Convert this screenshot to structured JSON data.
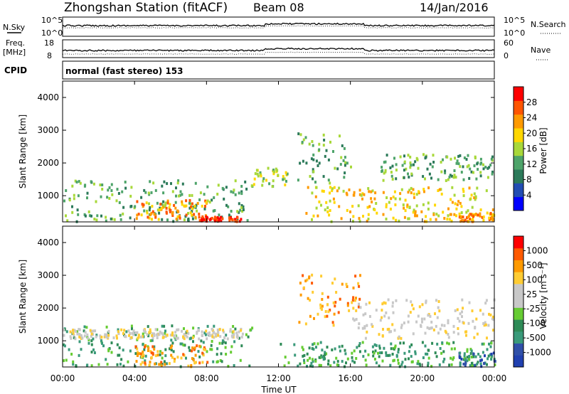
{
  "header": {
    "station": "Zhongshan Station (fitACF)",
    "beam": "Beam 08",
    "date": "14/Jan/2016"
  },
  "side_labels": {
    "nsky": "N.Sky",
    "nsearch": "N.Search",
    "freq": "Freq.",
    "freq_unit": "[MHz]",
    "nave": "Nave",
    "cpid": "CPID",
    "cpid_value": "normal (fast stereo) 153",
    "tick_1e5": "10^5",
    "tick_1e0": "10^0",
    "tick_18": "18",
    "tick_8": "8",
    "tick_60": "60",
    "tick_0": "0"
  },
  "colors": {
    "power_scale": [
      "#0000ff",
      "#224db3",
      "#2c7a5a",
      "#4ea46a",
      "#a8d83a",
      "#ffd700",
      "#ff9a00",
      "#ff5500",
      "#ff0000"
    ],
    "velocity_scale": [
      "#ff0000",
      "#ff5a00",
      "#ff9a00",
      "#ffcc33",
      "#c8c8c8",
      "#c8c8c8",
      "#66cc33",
      "#2e8b57",
      "#3a9a7a",
      "#3050a8",
      "#2040b0"
    ]
  },
  "chart_data": [
    {
      "type": "heatmap",
      "name": "power",
      "ylabel": "Slant Range [km]",
      "yticks": [
        "1000",
        "2000",
        "3000",
        "4000"
      ],
      "ylim": [
        200,
        4500
      ],
      "xlim": [
        "00:00",
        "24:00"
      ],
      "colorbar_label": "Power [dB]",
      "colorbar_ticks": [
        "4",
        "8",
        "12",
        "16",
        "20",
        "24",
        "28"
      ],
      "colorbar_range": [
        0,
        32
      ],
      "bands": [
        {
          "t0": 0.0,
          "t1": 10.5,
          "r0": 250,
          "r1": 1500,
          "level": 10
        },
        {
          "t0": 4.0,
          "t1": 8.0,
          "r0": 300,
          "r1": 900,
          "level": 22
        },
        {
          "t0": 7.5,
          "t1": 10.0,
          "r0": 250,
          "r1": 400,
          "level": 28
        },
        {
          "t0": 10.5,
          "t1": 12.5,
          "r0": 1300,
          "r1": 1900,
          "level": 14
        },
        {
          "t0": 13.0,
          "t1": 16.0,
          "r0": 1400,
          "r1": 3000,
          "level": 10
        },
        {
          "t0": 13.5,
          "t1": 24.0,
          "r0": 250,
          "r1": 1300,
          "level": 16
        },
        {
          "t0": 17.5,
          "t1": 24.0,
          "r0": 1500,
          "r1": 2300,
          "level": 12
        },
        {
          "t0": 21.5,
          "t1": 24.0,
          "r0": 250,
          "r1": 500,
          "level": 22
        }
      ]
    },
    {
      "type": "heatmap",
      "name": "velocity",
      "ylabel": "Slant Range [km]",
      "yticks": [
        "1000",
        "2000",
        "3000",
        "4000"
      ],
      "ylim": [
        200,
        4500
      ],
      "xlim": [
        "00:00",
        "24:00"
      ],
      "xticks": [
        "00:00",
        "04:00",
        "08:00",
        "12:00",
        "16:00",
        "20:00",
        "00:00"
      ],
      "xlabel": "Time UT",
      "colorbar_label": "Velocity [m s⁻¹]",
      "colorbar_ticks": [
        "1000",
        "500",
        "100",
        "25",
        "-25",
        "-100",
        "-500",
        "-1000"
      ],
      "bands": [
        {
          "t0": 0.0,
          "t1": 10.5,
          "r0": 250,
          "r1": 1500,
          "level": 7
        },
        {
          "t0": 4.0,
          "t1": 8.0,
          "r0": 250,
          "r1": 900,
          "level": 2
        },
        {
          "t0": 0.0,
          "t1": 10.0,
          "r0": 1100,
          "r1": 1400,
          "level": 4
        },
        {
          "t0": 13.0,
          "t1": 16.5,
          "r0": 1500,
          "r1": 3100,
          "level": 2
        },
        {
          "t0": 12.0,
          "t1": 24.0,
          "r0": 250,
          "r1": 1000,
          "level": 7
        },
        {
          "t0": 16.0,
          "t1": 24.0,
          "r0": 1100,
          "r1": 2300,
          "level": 4
        },
        {
          "t0": 22.0,
          "t1": 24.0,
          "r0": 250,
          "r1": 700,
          "level": 9
        }
      ]
    }
  ]
}
